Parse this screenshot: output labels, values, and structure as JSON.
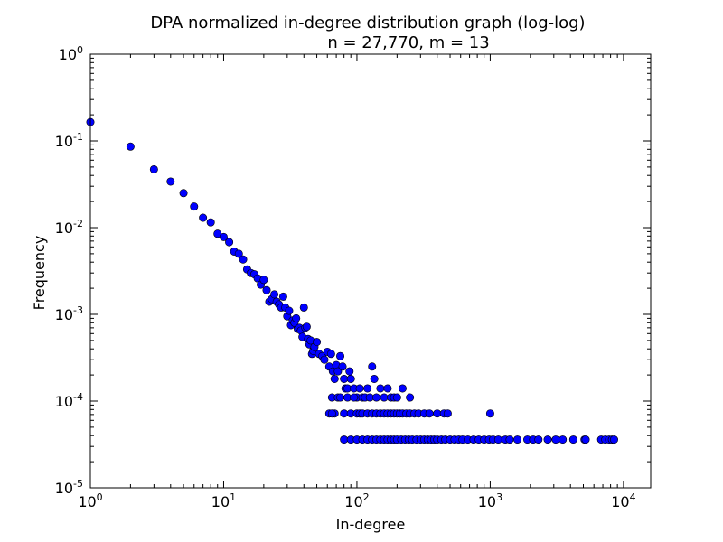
{
  "chart_data": {
    "type": "scatter",
    "title": "DPA normalized in-degree distribution graph (log-log)",
    "subtitle": "n = 27,770, m = 13",
    "xlabel": "In-degree",
    "ylabel": "Frequency",
    "xscale": "log",
    "yscale": "log",
    "xlim": [
      1,
      16000
    ],
    "ylim": [
      1e-05,
      1
    ],
    "x_ticks": [
      {
        "value": 1,
        "base": "10",
        "exp": "0"
      },
      {
        "value": 10,
        "base": "10",
        "exp": "1"
      },
      {
        "value": 100,
        "base": "10",
        "exp": "2"
      },
      {
        "value": 1000,
        "base": "10",
        "exp": "3"
      },
      {
        "value": 10000,
        "base": "10",
        "exp": "4"
      }
    ],
    "y_ticks": [
      {
        "value": 1,
        "base": "10",
        "exp": "0"
      },
      {
        "value": 0.1,
        "base": "10",
        "exp": "-1"
      },
      {
        "value": 0.01,
        "base": "10",
        "exp": "-2"
      },
      {
        "value": 0.001,
        "base": "10",
        "exp": "-3"
      },
      {
        "value": 0.0001,
        "base": "10",
        "exp": "-4"
      },
      {
        "value": 1e-05,
        "base": "10",
        "exp": "-5"
      }
    ],
    "grid": false,
    "marker_color": "#0000ff",
    "points": [
      [
        1,
        0.165
      ],
      [
        2,
        0.086
      ],
      [
        3,
        0.047
      ],
      [
        4,
        0.034
      ],
      [
        5,
        0.025
      ],
      [
        6,
        0.0175
      ],
      [
        7,
        0.013
      ],
      [
        8,
        0.0115
      ],
      [
        9,
        0.0085
      ],
      [
        10,
        0.0078
      ],
      [
        11,
        0.0068
      ],
      [
        12,
        0.0053
      ],
      [
        13,
        0.005
      ],
      [
        14,
        0.0043
      ],
      [
        15,
        0.0033
      ],
      [
        16,
        0.003
      ],
      [
        17,
        0.0029
      ],
      [
        18,
        0.0026
      ],
      [
        19,
        0.0022
      ],
      [
        20,
        0.0025
      ],
      [
        21,
        0.0019
      ],
      [
        22,
        0.0014
      ],
      [
        23,
        0.0015
      ],
      [
        24,
        0.0017
      ],
      [
        25,
        0.0014
      ],
      [
        26,
        0.0013
      ],
      [
        27,
        0.0012
      ],
      [
        28,
        0.0016
      ],
      [
        29,
        0.0012
      ],
      [
        30,
        0.00095
      ],
      [
        31,
        0.0011
      ],
      [
        32,
        0.00075
      ],
      [
        33,
        0.00085
      ],
      [
        34,
        0.0008
      ],
      [
        35,
        0.0009
      ],
      [
        36,
        0.00068
      ],
      [
        37,
        0.0007
      ],
      [
        38,
        0.00065
      ],
      [
        39,
        0.00055
      ],
      [
        40,
        0.0012
      ],
      [
        41,
        0.0007
      ],
      [
        42,
        0.00072
      ],
      [
        43,
        0.00052
      ],
      [
        44,
        0.00045
      ],
      [
        45,
        0.0005
      ],
      [
        46,
        0.00035
      ],
      [
        47,
        0.00038
      ],
      [
        48,
        0.00042
      ],
      [
        50,
        0.00048
      ],
      [
        52,
        0.00035
      ],
      [
        55,
        0.00033
      ],
      [
        57,
        0.0003
      ],
      [
        60,
        0.00037
      ],
      [
        62,
        0.00025
      ],
      [
        64,
        0.00035
      ],
      [
        66,
        0.00022
      ],
      [
        68,
        0.00018
      ],
      [
        70,
        0.00026
      ],
      [
        72,
        0.00022
      ],
      [
        75,
        0.00033
      ],
      [
        78,
        0.00025
      ],
      [
        80,
        0.00018
      ],
      [
        82,
        0.00014
      ],
      [
        85,
        0.00014
      ],
      [
        88,
        0.00022
      ],
      [
        90,
        0.00018
      ],
      [
        95,
        0.00014
      ],
      [
        100,
        0.00011
      ],
      [
        105,
        0.00014
      ],
      [
        110,
        0.00011
      ],
      [
        115,
        0.00011
      ],
      [
        120,
        0.00014
      ],
      [
        125,
        0.00011
      ],
      [
        130,
        0.00025
      ],
      [
        135,
        0.00018
      ],
      [
        140,
        0.00011
      ],
      [
        150,
        0.00014
      ],
      [
        160,
        0.00011
      ],
      [
        170,
        0.00014
      ],
      [
        180,
        0.00011
      ],
      [
        190,
        0.00011
      ],
      [
        200,
        0.00011
      ],
      [
        220,
        0.00014
      ],
      [
        250,
        0.00011
      ],
      [
        65,
        0.00011
      ],
      [
        68,
        7.2e-05
      ],
      [
        72,
        0.00011
      ],
      [
        75,
        0.00011
      ],
      [
        80,
        7.2e-05
      ],
      [
        85,
        0.00011
      ],
      [
        90,
        7.2e-05
      ],
      [
        95,
        0.00011
      ],
      [
        100,
        7.2e-05
      ],
      [
        105,
        7.2e-05
      ],
      [
        110,
        7.2e-05
      ],
      [
        120,
        7.2e-05
      ],
      [
        130,
        7.2e-05
      ],
      [
        140,
        7.2e-05
      ],
      [
        150,
        7.2e-05
      ],
      [
        160,
        7.2e-05
      ],
      [
        170,
        7.2e-05
      ],
      [
        180,
        7.2e-05
      ],
      [
        190,
        7.2e-05
      ],
      [
        200,
        7.2e-05
      ],
      [
        210,
        7.2e-05
      ],
      [
        220,
        7.2e-05
      ],
      [
        235,
        7.2e-05
      ],
      [
        250,
        7.2e-05
      ],
      [
        270,
        7.2e-05
      ],
      [
        290,
        7.2e-05
      ],
      [
        320,
        7.2e-05
      ],
      [
        350,
        7.2e-05
      ],
      [
        400,
        7.2e-05
      ],
      [
        450,
        7.2e-05
      ],
      [
        480,
        7.2e-05
      ],
      [
        1000,
        7.2e-05
      ],
      [
        62,
        7.2e-05
      ],
      [
        65,
        7.2e-05
      ],
      [
        80,
        3.6e-05
      ],
      [
        90,
        3.6e-05
      ],
      [
        100,
        3.6e-05
      ],
      [
        110,
        3.6e-05
      ],
      [
        120,
        3.6e-05
      ],
      [
        130,
        3.6e-05
      ],
      [
        140,
        3.6e-05
      ],
      [
        150,
        3.6e-05
      ],
      [
        160,
        3.6e-05
      ],
      [
        170,
        3.6e-05
      ],
      [
        180,
        3.6e-05
      ],
      [
        190,
        3.6e-05
      ],
      [
        200,
        3.6e-05
      ],
      [
        215,
        3.6e-05
      ],
      [
        230,
        3.6e-05
      ],
      [
        245,
        3.6e-05
      ],
      [
        260,
        3.6e-05
      ],
      [
        280,
        3.6e-05
      ],
      [
        300,
        3.6e-05
      ],
      [
        320,
        3.6e-05
      ],
      [
        340,
        3.6e-05
      ],
      [
        360,
        3.6e-05
      ],
      [
        380,
        3.6e-05
      ],
      [
        400,
        3.6e-05
      ],
      [
        430,
        3.6e-05
      ],
      [
        460,
        3.6e-05
      ],
      [
        500,
        3.6e-05
      ],
      [
        540,
        3.6e-05
      ],
      [
        580,
        3.6e-05
      ],
      [
        620,
        3.6e-05
      ],
      [
        680,
        3.6e-05
      ],
      [
        750,
        3.6e-05
      ],
      [
        820,
        3.6e-05
      ],
      [
        900,
        3.6e-05
      ],
      [
        980,
        3.6e-05
      ],
      [
        1050,
        3.6e-05
      ],
      [
        1150,
        3.6e-05
      ],
      [
        1300,
        3.6e-05
      ],
      [
        1400,
        3.6e-05
      ],
      [
        1600,
        3.6e-05
      ],
      [
        1900,
        3.6e-05
      ],
      [
        2100,
        3.6e-05
      ],
      [
        2300,
        3.6e-05
      ],
      [
        2700,
        3.6e-05
      ],
      [
        3100,
        3.6e-05
      ],
      [
        3500,
        3.6e-05
      ],
      [
        4200,
        3.6e-05
      ],
      [
        5100,
        3.6e-05
      ],
      [
        5200,
        3.6e-05
      ],
      [
        6800,
        3.6e-05
      ],
      [
        7300,
        3.6e-05
      ],
      [
        7800,
        3.6e-05
      ],
      [
        8200,
        3.6e-05
      ],
      [
        8500,
        3.6e-05
      ]
    ]
  }
}
